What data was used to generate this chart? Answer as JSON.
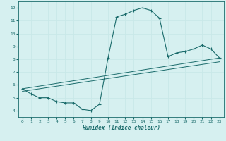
{
  "xlabel": "Humidex (Indice chaleur)",
  "ylabel": "",
  "bg_color": "#d6f0f0",
  "line_color": "#1a6b6b",
  "grid_color": "#c8e8e8",
  "xlim": [
    -0.5,
    23.5
  ],
  "ylim": [
    3.5,
    12.5
  ],
  "xticks": [
    0,
    1,
    2,
    3,
    4,
    5,
    6,
    7,
    8,
    9,
    10,
    11,
    12,
    13,
    14,
    15,
    16,
    17,
    18,
    19,
    20,
    21,
    22,
    23
  ],
  "yticks": [
    4,
    5,
    6,
    7,
    8,
    9,
    10,
    11,
    12
  ],
  "line1_x": [
    0,
    1,
    2,
    3,
    4,
    5,
    6,
    7,
    8,
    9,
    10,
    11,
    12,
    13,
    14,
    15,
    16,
    17,
    18,
    19,
    20,
    21,
    22,
    23
  ],
  "line1_y": [
    5.7,
    5.3,
    5.0,
    5.0,
    4.7,
    4.6,
    4.6,
    4.1,
    4.0,
    4.5,
    8.1,
    11.3,
    11.5,
    11.8,
    12.0,
    11.8,
    11.2,
    8.2,
    8.5,
    8.6,
    8.8,
    9.1,
    8.8,
    8.1
  ],
  "line2_x": [
    0,
    23
  ],
  "line2_y": [
    5.7,
    8.1
  ],
  "line3_x": [
    0,
    23
  ],
  "line3_y": [
    5.5,
    7.8
  ]
}
